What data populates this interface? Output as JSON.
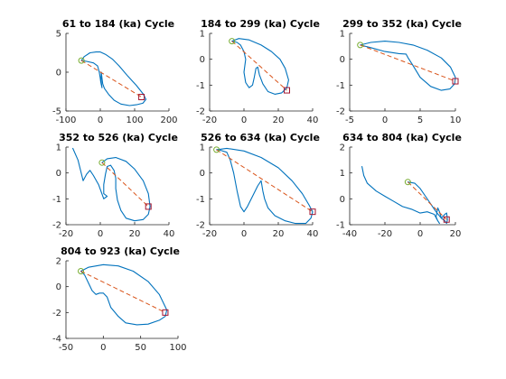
{
  "chart_data": [
    {
      "type": "line",
      "title": "61 to 184 (ka) Cycle",
      "xlim": [
        -100,
        200
      ],
      "ylim": [
        -5,
        5
      ],
      "xticks": [
        -100,
        0,
        100,
        200
      ],
      "xtick_labels": [
        "-100",
        "0",
        "100",
        "200"
      ],
      "yticks": [
        -5,
        0,
        5
      ],
      "ytick_labels": [
        "-5",
        "0",
        "5"
      ],
      "series": [
        {
          "role": "trajectory",
          "color": "#0072bd",
          "x": [
            -55,
            -47,
            -30,
            -12,
            0,
            15,
            35,
            55,
            80,
            105,
            125,
            133,
            124,
            105,
            85,
            60,
            40,
            25,
            12,
            7,
            5,
            3,
            2,
            5,
            3,
            1,
            0,
            -3,
            -8,
            -20,
            -40,
            -55
          ],
          "y": [
            1.5,
            2.0,
            2.5,
            2.6,
            2.6,
            2.3,
            1.7,
            0.8,
            -0.5,
            -1.7,
            -2.8,
            -3.5,
            -4.0,
            -4.2,
            -4.3,
            -4.1,
            -3.6,
            -2.9,
            -2.1,
            -1.5,
            -0.8,
            0.0,
            -1.0,
            -2.0,
            -1.6,
            -1.2,
            -0.8,
            0.0,
            0.8,
            1.2,
            1.4,
            1.5
          ]
        },
        {
          "role": "trend",
          "color": "#d95319",
          "style": "dashed",
          "x": [
            -55,
            120
          ],
          "y": [
            1.5,
            -3.2
          ]
        }
      ],
      "start_marker": {
        "shape": "circle",
        "color": "#77ac30",
        "x": -55,
        "y": 1.5
      },
      "end_marker": {
        "shape": "square",
        "color": "#a2142f",
        "x": 120,
        "y": -3.2
      }
    },
    {
      "type": "line",
      "title": "184 to 299 (ka) Cycle",
      "xlim": [
        -20,
        40
      ],
      "ylim": [
        -2,
        1
      ],
      "xticks": [
        -20,
        0,
        20,
        40
      ],
      "xtick_labels": [
        "-20",
        "0",
        "20",
        "40"
      ],
      "yticks": [
        -2,
        -1,
        0,
        1
      ],
      "ytick_labels": [
        "-2",
        "-1",
        "0",
        "1"
      ],
      "series": [
        {
          "role": "trajectory",
          "color": "#0072bd",
          "x": [
            -7,
            -3,
            3,
            10,
            16,
            21,
            24,
            26,
            25,
            22,
            18,
            14,
            11,
            9,
            8,
            7,
            6,
            5,
            3,
            1,
            0,
            1,
            0,
            -2,
            -4,
            -7
          ],
          "y": [
            0.7,
            0.8,
            0.75,
            0.55,
            0.3,
            0.0,
            -0.35,
            -0.8,
            -1.1,
            -1.3,
            -1.35,
            -1.25,
            -0.95,
            -0.6,
            -0.3,
            -0.35,
            -0.7,
            -1.0,
            -1.1,
            -0.9,
            -0.5,
            0.0,
            0.3,
            0.55,
            0.65,
            0.7
          ]
        },
        {
          "role": "trend",
          "color": "#d95319",
          "style": "dashed",
          "x": [
            -7,
            25
          ],
          "y": [
            0.7,
            -1.2
          ]
        }
      ],
      "start_marker": {
        "shape": "circle",
        "color": "#77ac30",
        "x": -7,
        "y": 0.7
      },
      "end_marker": {
        "shape": "square",
        "color": "#a2142f",
        "x": 25,
        "y": -1.2
      }
    },
    {
      "type": "line",
      "title": "299 to 352 (ka) Cycle",
      "xlim": [
        -5,
        10
      ],
      "ylim": [
        -2,
        1
      ],
      "xticks": [
        -5,
        0,
        5,
        10
      ],
      "xtick_labels": [
        "-5",
        "0",
        "5",
        "10"
      ],
      "yticks": [
        -2,
        -1,
        0,
        1
      ],
      "ytick_labels": [
        "-2",
        "-1",
        "0",
        "1"
      ],
      "series": [
        {
          "role": "trajectory",
          "color": "#0072bd",
          "x": [
            -3.5,
            -2,
            0,
            2,
            4,
            6,
            8,
            9.3,
            10,
            9.9,
            9.2,
            8,
            6.5,
            5,
            4,
            3.3,
            3,
            2,
            0,
            -2,
            -3.5
          ],
          "y": [
            0.55,
            0.65,
            0.7,
            0.65,
            0.55,
            0.35,
            0.05,
            -0.3,
            -0.7,
            -0.95,
            -1.15,
            -1.2,
            -1.05,
            -0.7,
            -0.25,
            0.05,
            0.2,
            0.22,
            0.3,
            0.45,
            0.55
          ]
        },
        {
          "role": "trend",
          "color": "#d95319",
          "style": "dashed",
          "x": [
            -3.5,
            10
          ],
          "y": [
            0.55,
            -0.85
          ]
        }
      ],
      "start_marker": {
        "shape": "circle",
        "color": "#77ac30",
        "x": -3.5,
        "y": 0.55
      },
      "end_marker": {
        "shape": "square",
        "color": "#a2142f",
        "x": 10,
        "y": -0.85
      }
    },
    {
      "type": "line",
      "title": "352 to 526 (ka) Cycle",
      "xlim": [
        -20,
        40
      ],
      "ylim": [
        -2,
        1
      ],
      "xticks": [
        -20,
        0,
        20,
        40
      ],
      "xtick_labels": [
        "-20",
        "0",
        "20",
        "40"
      ],
      "yticks": [
        -2,
        -1,
        0,
        1
      ],
      "ytick_labels": [
        "-2",
        "-1",
        "0",
        "1"
      ],
      "series": [
        {
          "role": "trajectory",
          "color": "#0072bd",
          "x": [
            1,
            4,
            9,
            15,
            20,
            25,
            28,
            29,
            28,
            25,
            20,
            15,
            12,
            10,
            9,
            9,
            8,
            6,
            4,
            3,
            2,
            2,
            4,
            2,
            -1,
            -4,
            -6,
            -8,
            -10,
            -13,
            -16
          ],
          "y": [
            0.4,
            0.55,
            0.6,
            0.45,
            0.15,
            -0.3,
            -0.8,
            -1.3,
            -1.6,
            -1.8,
            -1.85,
            -1.75,
            -1.45,
            -1.05,
            -0.6,
            -0.2,
            0.1,
            0.3,
            0.25,
            -0.05,
            -0.45,
            -0.8,
            -0.9,
            -1.0,
            -0.45,
            -0.1,
            0.1,
            -0.05,
            -0.3,
            0.5,
            0.95
          ]
        },
        {
          "role": "trend",
          "color": "#d95319",
          "style": "dashed",
          "x": [
            1,
            28
          ],
          "y": [
            0.4,
            -1.3
          ]
        }
      ],
      "start_marker": {
        "shape": "circle",
        "color": "#77ac30",
        "x": 1,
        "y": 0.4
      },
      "end_marker": {
        "shape": "square",
        "color": "#a2142f",
        "x": 28,
        "y": -1.3
      }
    },
    {
      "type": "line",
      "title": "526 to 634 (ka) Cycle",
      "xlim": [
        -20,
        40
      ],
      "ylim": [
        -2,
        1
      ],
      "xticks": [
        -20,
        0,
        20,
        40
      ],
      "xtick_labels": [
        "-20",
        "0",
        "20",
        "40"
      ],
      "yticks": [
        -2,
        -1,
        0,
        1
      ],
      "ytick_labels": [
        "-2",
        "-1",
        "0",
        "1"
      ],
      "series": [
        {
          "role": "trajectory",
          "color": "#0072bd",
          "x": [
            -16,
            -10,
            0,
            10,
            20,
            28,
            34,
            38,
            40,
            39,
            36,
            30,
            24,
            18,
            14,
            12,
            11,
            10,
            8,
            5,
            2,
            0,
            -2,
            -4,
            -6,
            -8,
            -10,
            -14,
            -16
          ],
          "y": [
            0.9,
            0.95,
            0.85,
            0.6,
            0.2,
            -0.3,
            -0.8,
            -1.25,
            -1.5,
            -1.75,
            -1.95,
            -1.95,
            -1.85,
            -1.65,
            -1.35,
            -1.0,
            -0.7,
            -0.3,
            -0.5,
            -0.9,
            -1.3,
            -1.5,
            -1.3,
            -0.7,
            0.0,
            0.5,
            0.8,
            0.88,
            0.9
          ]
        },
        {
          "role": "trend",
          "color": "#d95319",
          "style": "dashed",
          "x": [
            -16,
            40
          ],
          "y": [
            0.9,
            -1.5
          ]
        }
      ],
      "start_marker": {
        "shape": "circle",
        "color": "#77ac30",
        "x": -16,
        "y": 0.9
      },
      "end_marker": {
        "shape": "square",
        "color": "#a2142f",
        "x": 40,
        "y": -1.5
      }
    },
    {
      "type": "line",
      "title": "634 to 804 (ka) Cycle",
      "xlim": [
        -40,
        20
      ],
      "ylim": [
        -1,
        2
      ],
      "xticks": [
        -40,
        -20,
        0,
        20
      ],
      "xtick_labels": [
        "-40",
        "-20",
        "0",
        "20"
      ],
      "yticks": [
        -1,
        0,
        1,
        2
      ],
      "ytick_labels": [
        "-1",
        "0",
        "1",
        "2"
      ],
      "series": [
        {
          "role": "trajectory",
          "color": "#0072bd",
          "x": [
            -7,
            -3,
            0,
            3,
            6,
            9,
            12,
            14,
            15,
            15.5,
            15,
            14,
            12,
            11,
            10,
            9,
            10,
            11,
            10,
            8,
            4,
            0,
            -5,
            -10,
            -15,
            -20,
            -25,
            -30,
            -32,
            -33
          ],
          "y": [
            0.65,
            0.6,
            0.4,
            0.1,
            -0.2,
            -0.5,
            -0.75,
            -0.85,
            -0.95,
            -0.8,
            -0.55,
            -0.6,
            -0.75,
            -0.5,
            -0.35,
            -0.7,
            -0.85,
            -0.95,
            -0.85,
            -0.6,
            -0.5,
            -0.55,
            -0.4,
            -0.3,
            -0.1,
            0.1,
            0.3,
            0.6,
            0.9,
            1.25
          ]
        },
        {
          "role": "trend",
          "color": "#d95319",
          "style": "dashed",
          "x": [
            -7,
            15
          ],
          "y": [
            0.65,
            -0.8
          ]
        }
      ],
      "start_marker": {
        "shape": "circle",
        "color": "#77ac30",
        "x": -7,
        "y": 0.65
      },
      "end_marker": {
        "shape": "square",
        "color": "#a2142f",
        "x": 15,
        "y": -0.8
      }
    },
    {
      "type": "line",
      "title": "804 to 923 (ka) Cycle",
      "xlim": [
        -50,
        100
      ],
      "ylim": [
        -4,
        2
      ],
      "xticks": [
        -50,
        0,
        50,
        100
      ],
      "xtick_labels": [
        "-50",
        "0",
        "50",
        "100"
      ],
      "yticks": [
        -4,
        -2,
        0,
        2
      ],
      "ytick_labels": [
        "-4",
        "-2",
        "0",
        "2"
      ],
      "series": [
        {
          "role": "trajectory",
          "color": "#0072bd",
          "x": [
            -30,
            -20,
            0,
            20,
            40,
            60,
            75,
            85,
            83,
            75,
            60,
            45,
            30,
            20,
            10,
            5,
            0,
            -5,
            -10,
            -15,
            -20,
            -25,
            -30
          ],
          "y": [
            1.2,
            1.5,
            1.7,
            1.6,
            1.2,
            0.4,
            -0.6,
            -1.8,
            -2.3,
            -2.6,
            -2.9,
            -2.95,
            -2.8,
            -2.3,
            -1.6,
            -0.8,
            -0.5,
            -0.5,
            -0.6,
            -0.3,
            0.3,
            0.9,
            1.2
          ]
        },
        {
          "role": "trend",
          "color": "#d95319",
          "style": "dashed",
          "x": [
            -30,
            83
          ],
          "y": [
            1.2,
            -2.0
          ]
        }
      ],
      "start_marker": {
        "shape": "circle",
        "color": "#77ac30",
        "x": -30,
        "y": 1.2
      },
      "end_marker": {
        "shape": "square",
        "color": "#a2142f",
        "x": 83,
        "y": -2.0
      }
    }
  ]
}
